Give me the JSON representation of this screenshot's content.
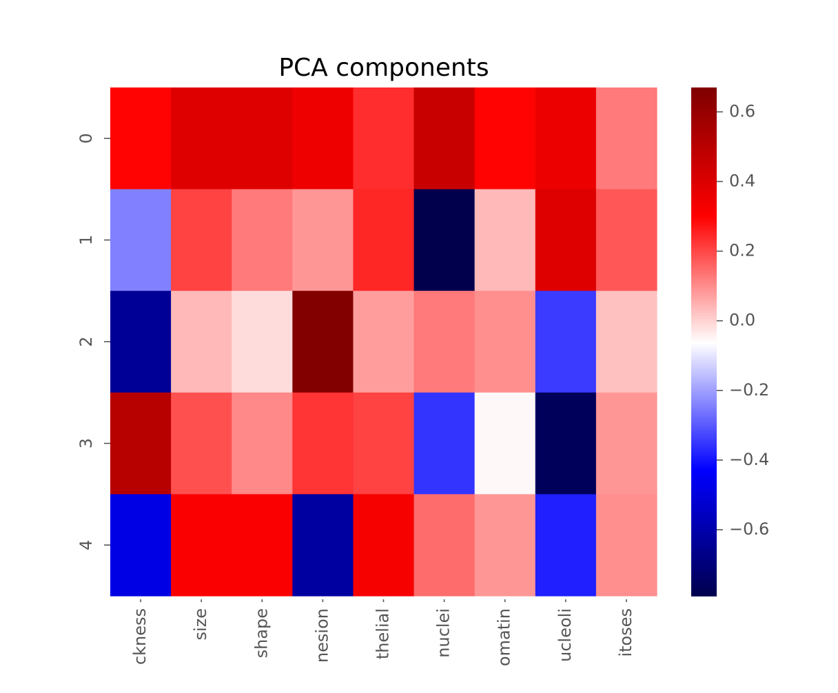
{
  "chart_data": {
    "type": "heatmap",
    "title": "PCA components",
    "xlabel": "",
    "ylabel": "",
    "rows": [
      "0",
      "1",
      "2",
      "3",
      "4"
    ],
    "columns": [
      "ckness",
      "size",
      "shape",
      "nesion",
      "thelial",
      "nuclei",
      "omatin",
      "ucleoli",
      "itoses"
    ],
    "values": [
      [
        0.3,
        0.4,
        0.4,
        0.35,
        0.24,
        0.46,
        0.3,
        0.36,
        0.13
      ],
      [
        -0.24,
        0.21,
        0.13,
        0.09,
        0.25,
        -0.79,
        0.04,
        0.4,
        0.18
      ],
      [
        -0.64,
        0.04,
        -0.01,
        0.66,
        0.08,
        0.13,
        0.1,
        -0.34,
        0.03
      ],
      [
        0.51,
        0.19,
        0.11,
        0.23,
        0.21,
        -0.35,
        -0.05,
        -0.76,
        0.09
      ],
      [
        -0.48,
        0.32,
        0.32,
        -0.62,
        0.33,
        0.15,
        0.09,
        -0.38,
        0.1
      ]
    ],
    "colormap": "seismic",
    "colorbar": {
      "vmin": -0.79,
      "vmax": 0.67,
      "ticks": [
        -0.6,
        -0.4,
        -0.2,
        0.0,
        0.2,
        0.4,
        0.6
      ],
      "tick_labels": [
        "−0.6",
        "−0.4",
        "−0.2",
        "0.0",
        "0.2",
        "0.4",
        "0.6"
      ]
    },
    "grid": false,
    "legend": "colorbar-right"
  }
}
